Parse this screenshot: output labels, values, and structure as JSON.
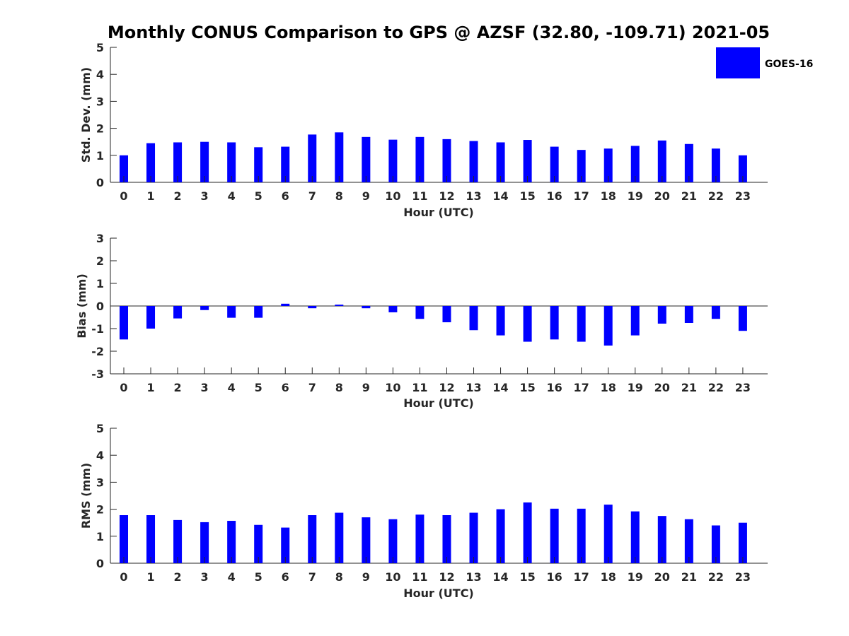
{
  "title": "Monthly CONUS Comparison to GPS @ AZSF (32.80, -109.71) 2021-05",
  "legend": {
    "label": "GOES-16",
    "color": "#0000ff"
  },
  "chart_data": [
    {
      "type": "bar",
      "categories": [
        "0",
        "1",
        "2",
        "3",
        "4",
        "5",
        "6",
        "7",
        "8",
        "9",
        "10",
        "11",
        "12",
        "13",
        "14",
        "15",
        "16",
        "17",
        "18",
        "19",
        "20",
        "21",
        "22",
        "23"
      ],
      "series": [
        {
          "name": "GOES-16",
          "values": [
            1.0,
            1.45,
            1.48,
            1.5,
            1.48,
            1.3,
            1.32,
            1.77,
            1.85,
            1.68,
            1.58,
            1.68,
            1.6,
            1.53,
            1.48,
            1.57,
            1.32,
            1.2,
            1.25,
            1.35,
            1.55,
            1.42,
            1.25,
            1.0
          ]
        }
      ],
      "xlabel": "Hour (UTC)",
      "ylabel": "Std. Dev. (mm)",
      "ylim": [
        0,
        5
      ],
      "yticks": [
        "0",
        "1",
        "2",
        "3",
        "4",
        "5"
      ]
    },
    {
      "type": "bar",
      "categories": [
        "0",
        "1",
        "2",
        "3",
        "4",
        "5",
        "6",
        "7",
        "8",
        "9",
        "10",
        "11",
        "12",
        "13",
        "14",
        "15",
        "16",
        "17",
        "18",
        "19",
        "20",
        "21",
        "22",
        "23"
      ],
      "series": [
        {
          "name": "GOES-16",
          "values": [
            -1.48,
            -1.0,
            -0.55,
            -0.18,
            -0.52,
            -0.52,
            0.1,
            -0.1,
            0.06,
            -0.1,
            -0.28,
            -0.57,
            -0.72,
            -1.07,
            -1.3,
            -1.58,
            -1.48,
            -1.58,
            -1.75,
            -1.3,
            -0.78,
            -0.75,
            -0.57,
            -1.1
          ]
        }
      ],
      "xlabel": "Hour (UTC)",
      "ylabel": "Bias (mm)",
      "ylim": [
        -3,
        3
      ],
      "yticks": [
        "-3",
        "-2",
        "-1",
        "0",
        "1",
        "2",
        "3"
      ]
    },
    {
      "type": "bar",
      "categories": [
        "0",
        "1",
        "2",
        "3",
        "4",
        "5",
        "6",
        "7",
        "8",
        "9",
        "10",
        "11",
        "12",
        "13",
        "14",
        "15",
        "16",
        "17",
        "18",
        "19",
        "20",
        "21",
        "22",
        "23"
      ],
      "series": [
        {
          "name": "GOES-16",
          "values": [
            1.78,
            1.78,
            1.6,
            1.52,
            1.57,
            1.42,
            1.32,
            1.78,
            1.87,
            1.7,
            1.63,
            1.8,
            1.78,
            1.87,
            2.0,
            2.25,
            2.02,
            2.02,
            2.17,
            1.92,
            1.75,
            1.63,
            1.4,
            1.5
          ]
        }
      ],
      "xlabel": "Hour (UTC)",
      "ylabel": "RMS (mm)",
      "ylim": [
        0,
        5
      ],
      "yticks": [
        "0",
        "1",
        "2",
        "3",
        "4",
        "5"
      ]
    }
  ]
}
